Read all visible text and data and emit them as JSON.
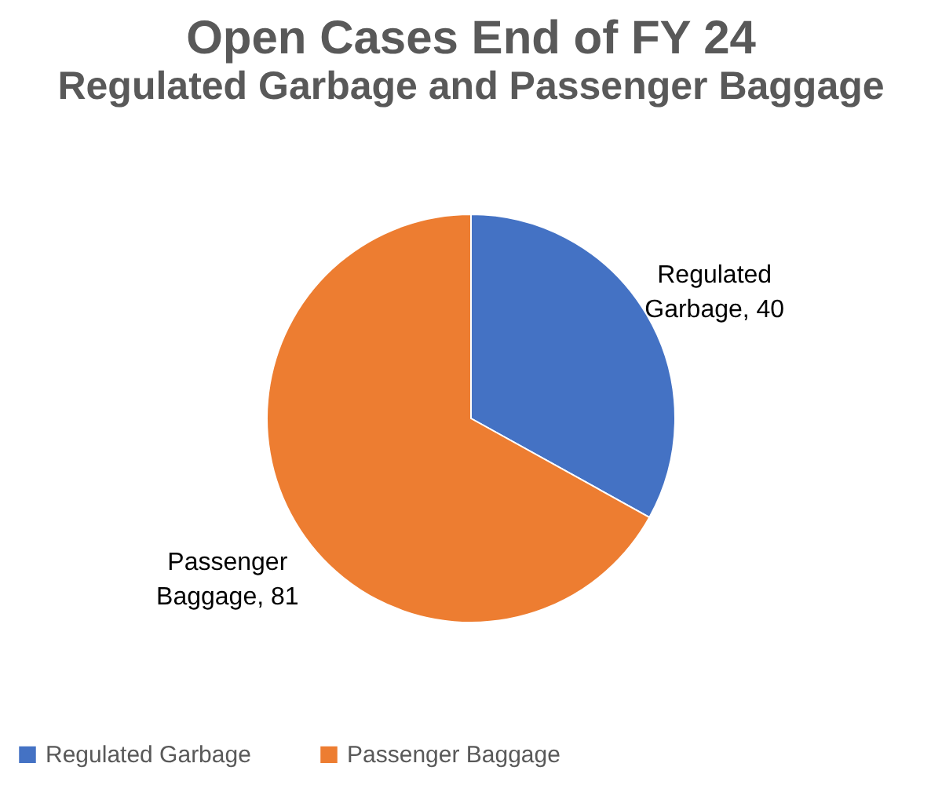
{
  "chart_data": {
    "type": "pie",
    "title": "Open Cases End of FY 24",
    "subtitle": "Regulated Garbage and Passenger Baggage",
    "categories": [
      "Regulated Garbage",
      "Passenger Baggage"
    ],
    "values": [
      40,
      81
    ],
    "colors": [
      "#4472c4",
      "#ed7d31"
    ],
    "value_labels": [
      "Regulated Garbage, 40",
      "Passenger Baggage, 81"
    ],
    "legend": "bottom"
  }
}
